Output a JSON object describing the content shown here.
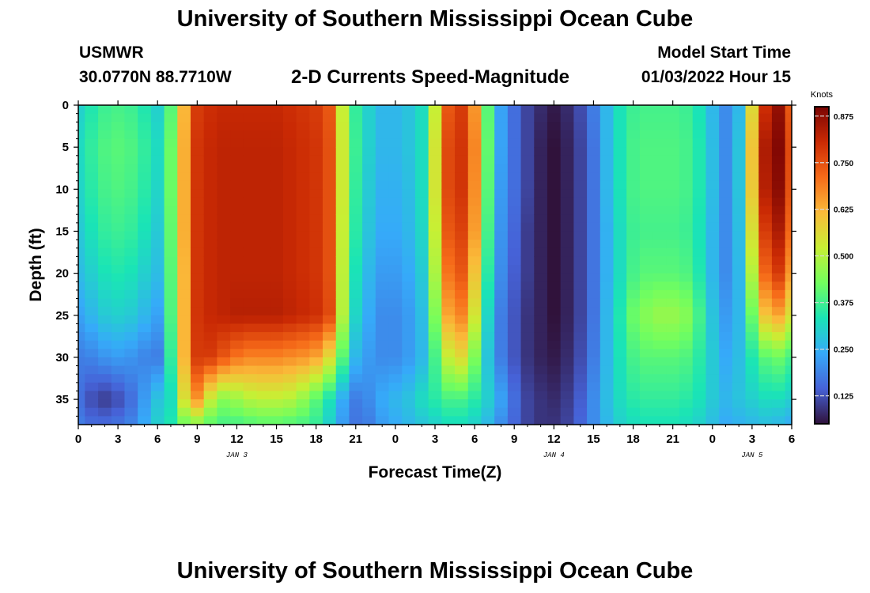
{
  "header": {
    "title": "University of Southern Mississippi Ocean Cube",
    "station": "USMWR",
    "coords": "30.0770N  88.7710W",
    "subtitle": "2-D Currents Speed-Magnitude",
    "model_start_label": "Model Start Time",
    "model_start_value": "01/03/2022 Hour 15"
  },
  "footer": {
    "title": "University of Southern Mississippi Ocean Cube"
  },
  "chart_data": {
    "type": "heatmap",
    "xlabel": "Forecast Time(Z)",
    "ylabel": "Depth (ft)",
    "x_tick_labels": [
      "0",
      "3",
      "6",
      "9",
      "12",
      "15",
      "18",
      "21",
      "0",
      "3",
      "6",
      "9",
      "12",
      "15",
      "18",
      "21",
      "0",
      "3",
      "6"
    ],
    "x_range_hours": [
      0,
      54
    ],
    "day_labels": [
      {
        "text": "JAN 3",
        "hour": 12
      },
      {
        "text": "JAN 4",
        "hour": 36
      },
      {
        "text": "JAN 5",
        "hour": 51
      }
    ],
    "y_tick_labels": [
      "0",
      "5",
      "10",
      "15",
      "20",
      "25",
      "30",
      "35"
    ],
    "y_ticks": [
      0,
      5,
      10,
      15,
      20,
      25,
      30,
      35
    ],
    "y_range_ft": [
      0,
      38
    ],
    "y_inverted": true,
    "colorbar": {
      "title": "Knots",
      "range": [
        0.05,
        0.9
      ],
      "tick_values": [
        0.125,
        0.25,
        0.375,
        0.5,
        0.625,
        0.75,
        0.875
      ],
      "tick_labels": [
        "0.125",
        "0.250",
        "0.375",
        "0.500",
        "0.625",
        "0.750",
        "0.875"
      ],
      "colors": [
        "#30123b",
        "#4662d7",
        "#36aaf9",
        "#1ae4b6",
        "#72fe5e",
        "#c8ef34",
        "#faba39",
        "#f66b19",
        "#ca2a04",
        "#7a0403"
      ]
    },
    "time_grid_hours": [
      0,
      1,
      2,
      3,
      4,
      5,
      6,
      7,
      8,
      9,
      10,
      11,
      12,
      13,
      14,
      15,
      16,
      17,
      18,
      19,
      20,
      21,
      22,
      23,
      24,
      25,
      26,
      27,
      28,
      29,
      30,
      31,
      32,
      33,
      34,
      35,
      36,
      37,
      38,
      39,
      40,
      41,
      42,
      43,
      44,
      45,
      46,
      47,
      48,
      49,
      50,
      51,
      52,
      53,
      54
    ],
    "depth_levels_ft": [
      0,
      5,
      10,
      15,
      20,
      25,
      30,
      35,
      38
    ],
    "values_by_depth": [
      [
        0.3,
        0.34,
        0.37,
        0.38,
        0.37,
        0.34,
        0.3,
        0.4,
        0.62,
        0.78,
        0.8,
        0.81,
        0.81,
        0.81,
        0.81,
        0.81,
        0.8,
        0.79,
        0.78,
        0.74,
        0.52,
        0.36,
        0.3,
        0.26,
        0.26,
        0.28,
        0.32,
        0.52,
        0.74,
        0.78,
        0.66,
        0.4,
        0.23,
        0.16,
        0.11,
        0.08,
        0.06,
        0.08,
        0.12,
        0.18,
        0.26,
        0.33,
        0.37,
        0.38,
        0.38,
        0.38,
        0.37,
        0.33,
        0.26,
        0.2,
        0.26,
        0.56,
        0.8,
        0.87,
        0.74
      ],
      [
        0.32,
        0.36,
        0.39,
        0.4,
        0.39,
        0.36,
        0.32,
        0.42,
        0.63,
        0.79,
        0.81,
        0.82,
        0.82,
        0.82,
        0.82,
        0.82,
        0.81,
        0.8,
        0.79,
        0.75,
        0.53,
        0.37,
        0.3,
        0.26,
        0.26,
        0.28,
        0.32,
        0.54,
        0.76,
        0.79,
        0.68,
        0.41,
        0.23,
        0.16,
        0.11,
        0.07,
        0.05,
        0.07,
        0.11,
        0.17,
        0.26,
        0.33,
        0.38,
        0.39,
        0.39,
        0.39,
        0.38,
        0.34,
        0.27,
        0.2,
        0.28,
        0.6,
        0.84,
        0.89,
        0.76
      ],
      [
        0.31,
        0.35,
        0.38,
        0.39,
        0.38,
        0.35,
        0.31,
        0.42,
        0.63,
        0.79,
        0.81,
        0.82,
        0.82,
        0.82,
        0.82,
        0.82,
        0.81,
        0.8,
        0.79,
        0.75,
        0.53,
        0.36,
        0.29,
        0.25,
        0.25,
        0.27,
        0.32,
        0.54,
        0.76,
        0.79,
        0.67,
        0.4,
        0.22,
        0.16,
        0.11,
        0.07,
        0.05,
        0.07,
        0.11,
        0.17,
        0.26,
        0.33,
        0.38,
        0.39,
        0.39,
        0.39,
        0.38,
        0.34,
        0.27,
        0.2,
        0.28,
        0.59,
        0.83,
        0.88,
        0.75
      ],
      [
        0.29,
        0.33,
        0.36,
        0.37,
        0.36,
        0.33,
        0.29,
        0.41,
        0.63,
        0.79,
        0.81,
        0.82,
        0.82,
        0.82,
        0.82,
        0.82,
        0.81,
        0.8,
        0.79,
        0.75,
        0.52,
        0.35,
        0.28,
        0.24,
        0.24,
        0.26,
        0.31,
        0.52,
        0.74,
        0.77,
        0.65,
        0.38,
        0.21,
        0.15,
        0.1,
        0.07,
        0.05,
        0.07,
        0.11,
        0.17,
        0.25,
        0.32,
        0.37,
        0.38,
        0.38,
        0.38,
        0.37,
        0.33,
        0.26,
        0.2,
        0.27,
        0.55,
        0.78,
        0.84,
        0.72
      ],
      [
        0.27,
        0.3,
        0.33,
        0.34,
        0.33,
        0.3,
        0.27,
        0.4,
        0.62,
        0.79,
        0.81,
        0.82,
        0.82,
        0.82,
        0.82,
        0.82,
        0.81,
        0.8,
        0.79,
        0.75,
        0.51,
        0.33,
        0.26,
        0.22,
        0.22,
        0.24,
        0.29,
        0.49,
        0.7,
        0.74,
        0.6,
        0.35,
        0.2,
        0.14,
        0.1,
        0.07,
        0.05,
        0.07,
        0.11,
        0.17,
        0.25,
        0.32,
        0.38,
        0.4,
        0.4,
        0.4,
        0.39,
        0.34,
        0.26,
        0.2,
        0.26,
        0.5,
        0.72,
        0.78,
        0.66
      ],
      [
        0.23,
        0.26,
        0.29,
        0.3,
        0.29,
        0.26,
        0.23,
        0.39,
        0.62,
        0.79,
        0.81,
        0.82,
        0.83,
        0.83,
        0.83,
        0.83,
        0.82,
        0.81,
        0.8,
        0.76,
        0.5,
        0.31,
        0.24,
        0.2,
        0.2,
        0.22,
        0.27,
        0.44,
        0.64,
        0.68,
        0.54,
        0.31,
        0.18,
        0.13,
        0.09,
        0.07,
        0.05,
        0.07,
        0.11,
        0.17,
        0.26,
        0.34,
        0.42,
        0.45,
        0.47,
        0.47,
        0.45,
        0.38,
        0.28,
        0.22,
        0.26,
        0.42,
        0.6,
        0.64,
        0.55
      ],
      [
        0.18,
        0.19,
        0.21,
        0.22,
        0.21,
        0.19,
        0.18,
        0.36,
        0.62,
        0.78,
        0.78,
        0.74,
        0.7,
        0.68,
        0.68,
        0.68,
        0.67,
        0.66,
        0.64,
        0.56,
        0.4,
        0.26,
        0.22,
        0.2,
        0.2,
        0.22,
        0.26,
        0.38,
        0.52,
        0.56,
        0.44,
        0.28,
        0.18,
        0.13,
        0.09,
        0.07,
        0.06,
        0.08,
        0.12,
        0.18,
        0.26,
        0.33,
        0.38,
        0.4,
        0.4,
        0.4,
        0.39,
        0.35,
        0.29,
        0.24,
        0.27,
        0.34,
        0.4,
        0.42,
        0.38
      ],
      [
        0.16,
        0.12,
        0.1,
        0.12,
        0.16,
        0.22,
        0.28,
        0.32,
        0.55,
        0.66,
        0.52,
        0.45,
        0.47,
        0.5,
        0.51,
        0.51,
        0.5,
        0.46,
        0.4,
        0.33,
        0.24,
        0.18,
        0.2,
        0.24,
        0.26,
        0.28,
        0.32,
        0.35,
        0.38,
        0.38,
        0.35,
        0.3,
        0.23,
        0.16,
        0.11,
        0.09,
        0.08,
        0.1,
        0.14,
        0.2,
        0.27,
        0.32,
        0.35,
        0.36,
        0.36,
        0.36,
        0.35,
        0.33,
        0.29,
        0.26,
        0.28,
        0.3,
        0.32,
        0.32,
        0.3
      ],
      [
        0.18,
        0.16,
        0.16,
        0.17,
        0.19,
        0.24,
        0.3,
        0.34,
        0.42,
        0.44,
        0.4,
        0.38,
        0.38,
        0.39,
        0.4,
        0.4,
        0.39,
        0.38,
        0.36,
        0.3,
        0.22,
        0.17,
        0.18,
        0.22,
        0.24,
        0.26,
        0.28,
        0.3,
        0.32,
        0.32,
        0.3,
        0.26,
        0.2,
        0.15,
        0.11,
        0.09,
        0.09,
        0.11,
        0.15,
        0.2,
        0.26,
        0.3,
        0.32,
        0.33,
        0.33,
        0.33,
        0.32,
        0.3,
        0.27,
        0.24,
        0.25,
        0.26,
        0.27,
        0.26,
        0.24
      ]
    ]
  }
}
